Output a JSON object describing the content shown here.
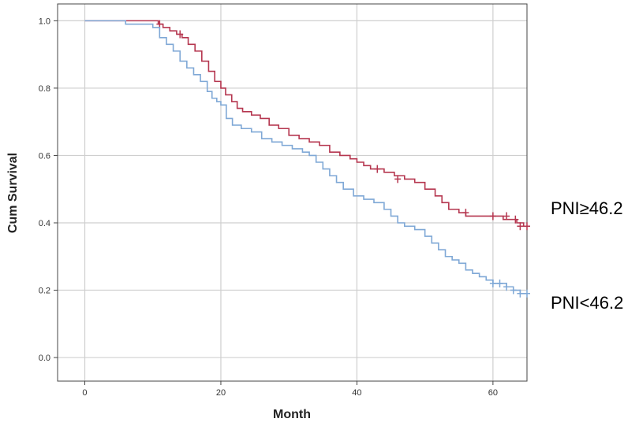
{
  "chart_data": {
    "type": "line",
    "title": "",
    "xlabel": "Month",
    "ylabel": "Cum Survival",
    "xlim": [
      -4,
      65
    ],
    "ylim": [
      -0.07,
      1.05
    ],
    "xticks": [
      "0",
      "20",
      "40",
      "60"
    ],
    "yticks": [
      "0.0",
      "0.2",
      "0.4",
      "0.6",
      "0.8",
      "1.0"
    ],
    "grid": true,
    "series": [
      {
        "name": "PNI≥46.2",
        "color": "#b5364f",
        "x": [
          0,
          10,
          10.8,
          11.5,
          12.5,
          13.5,
          14.3,
          15.2,
          16.2,
          17.2,
          18.2,
          19.1,
          20,
          20.7,
          21.6,
          22.4,
          23.2,
          24.5,
          25.8,
          27.1,
          28.5,
          30,
          31.5,
          33,
          34.5,
          36,
          37.5,
          39,
          40,
          41,
          42,
          44,
          45.5,
          47,
          48.5,
          50,
          51.5,
          52.5,
          53.5,
          55,
          56,
          60,
          61.5,
          62.5,
          63.5,
          64.5,
          65
        ],
        "y": [
          1.0,
          1.0,
          0.99,
          0.98,
          0.97,
          0.96,
          0.95,
          0.93,
          0.91,
          0.88,
          0.85,
          0.82,
          0.8,
          0.78,
          0.76,
          0.74,
          0.73,
          0.72,
          0.71,
          0.69,
          0.68,
          0.66,
          0.65,
          0.64,
          0.63,
          0.61,
          0.6,
          0.59,
          0.58,
          0.57,
          0.56,
          0.55,
          0.54,
          0.53,
          0.52,
          0.5,
          0.48,
          0.46,
          0.44,
          0.43,
          0.42,
          0.42,
          0.41,
          0.41,
          0.4,
          0.39,
          0.39
        ],
        "censor_x": [
          11,
          14,
          43,
          46,
          56,
          60,
          62,
          63.3,
          64,
          65
        ],
        "censor_y": [
          0.99,
          0.96,
          0.56,
          0.53,
          0.43,
          0.42,
          0.42,
          0.41,
          0.39,
          0.39
        ]
      },
      {
        "name": "PNI<46.2",
        "color": "#7fa8d6",
        "x": [
          0,
          6,
          10,
          11,
          12,
          13,
          14,
          15,
          16,
          17,
          18,
          18.7,
          19.4,
          20,
          20.8,
          21.7,
          23,
          24.5,
          26,
          27.5,
          29,
          30.5,
          32,
          33,
          34,
          35,
          36,
          37,
          38,
          39.5,
          41,
          42.5,
          44,
          45,
          46,
          47,
          48.5,
          50,
          51,
          52,
          53,
          54,
          55,
          56,
          57,
          58,
          59,
          60,
          61,
          62,
          63,
          64,
          65
        ],
        "y": [
          1.0,
          0.99,
          0.98,
          0.95,
          0.93,
          0.91,
          0.88,
          0.86,
          0.84,
          0.82,
          0.79,
          0.77,
          0.76,
          0.75,
          0.71,
          0.69,
          0.68,
          0.67,
          0.65,
          0.64,
          0.63,
          0.62,
          0.61,
          0.6,
          0.58,
          0.56,
          0.54,
          0.52,
          0.5,
          0.48,
          0.47,
          0.46,
          0.44,
          0.42,
          0.4,
          0.39,
          0.38,
          0.36,
          0.34,
          0.32,
          0.3,
          0.29,
          0.28,
          0.26,
          0.25,
          0.24,
          0.23,
          0.22,
          0.22,
          0.21,
          0.2,
          0.19,
          0.19
        ],
        "censor_x": [
          60,
          61,
          62,
          63,
          64,
          65
        ],
        "censor_y": [
          0.22,
          0.22,
          0.21,
          0.2,
          0.19,
          0.19
        ]
      }
    ]
  }
}
